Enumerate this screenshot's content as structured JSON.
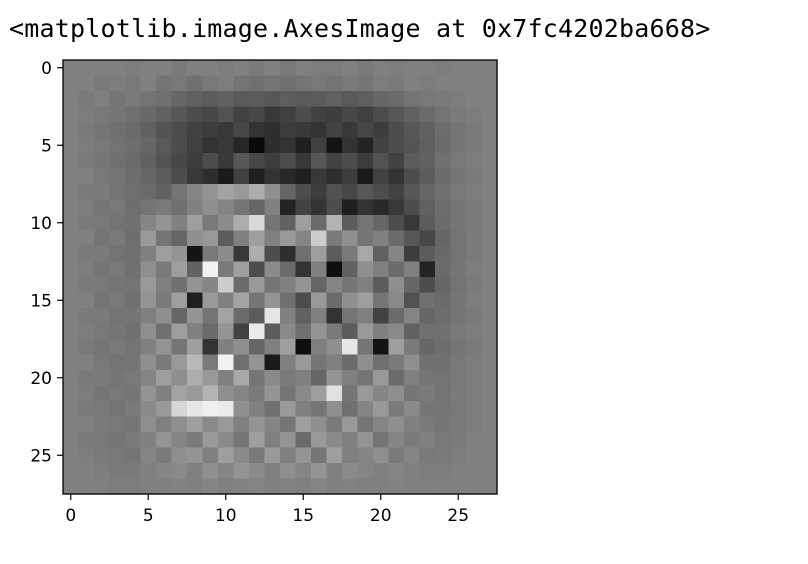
{
  "output": {
    "repr_text": "<matplotlib.image.AxesImage at 0x7fc4202ba668>"
  },
  "chart_data": {
    "type": "heatmap",
    "colormap": "gray",
    "rows": 28,
    "cols": 28,
    "xticks": [
      "0",
      "5",
      "10",
      "15",
      "20",
      "25"
    ],
    "yticks": [
      "0",
      "5",
      "10",
      "15",
      "20",
      "25"
    ],
    "tick_values": [
      0,
      5,
      10,
      15,
      20,
      25
    ],
    "axis_range": [
      -0.5,
      27.5
    ],
    "grid": false,
    "value_range": [
      0,
      1
    ],
    "values": [
      [
        0.5,
        0.5,
        0.5,
        0.5,
        0.49,
        0.5,
        0.5,
        0.48,
        0.5,
        0.5,
        0.49,
        0.5,
        0.48,
        0.5,
        0.47,
        0.5,
        0.49,
        0.49,
        0.5,
        0.48,
        0.5,
        0.49,
        0.5,
        0.5,
        0.49,
        0.5,
        0.5,
        0.5
      ],
      [
        0.5,
        0.5,
        0.48,
        0.49,
        0.47,
        0.5,
        0.46,
        0.47,
        0.44,
        0.47,
        0.49,
        0.46,
        0.44,
        0.46,
        0.44,
        0.46,
        0.47,
        0.45,
        0.48,
        0.46,
        0.49,
        0.48,
        0.5,
        0.49,
        0.5,
        0.5,
        0.5,
        0.5
      ],
      [
        0.5,
        0.48,
        0.5,
        0.46,
        0.48,
        0.45,
        0.44,
        0.4,
        0.38,
        0.36,
        0.38,
        0.35,
        0.36,
        0.34,
        0.37,
        0.35,
        0.36,
        0.38,
        0.35,
        0.37,
        0.4,
        0.42,
        0.45,
        0.47,
        0.48,
        0.49,
        0.5,
        0.5
      ],
      [
        0.5,
        0.49,
        0.47,
        0.46,
        0.44,
        0.41,
        0.38,
        0.34,
        0.3,
        0.28,
        0.32,
        0.26,
        0.28,
        0.22,
        0.25,
        0.3,
        0.26,
        0.24,
        0.28,
        0.25,
        0.3,
        0.34,
        0.38,
        0.42,
        0.45,
        0.48,
        0.49,
        0.5
      ],
      [
        0.5,
        0.48,
        0.46,
        0.44,
        0.42,
        0.38,
        0.33,
        0.3,
        0.26,
        0.24,
        0.22,
        0.28,
        0.2,
        0.18,
        0.24,
        0.22,
        0.2,
        0.26,
        0.22,
        0.28,
        0.24,
        0.3,
        0.34,
        0.38,
        0.43,
        0.46,
        0.48,
        0.5
      ],
      [
        0.5,
        0.49,
        0.47,
        0.45,
        0.43,
        0.4,
        0.35,
        0.3,
        0.25,
        0.2,
        0.22,
        0.15,
        0.04,
        0.18,
        0.2,
        0.12,
        0.25,
        0.08,
        0.2,
        0.14,
        0.26,
        0.3,
        0.33,
        0.37,
        0.42,
        0.46,
        0.48,
        0.5
      ],
      [
        0.5,
        0.48,
        0.46,
        0.44,
        0.42,
        0.38,
        0.33,
        0.28,
        0.24,
        0.3,
        0.22,
        0.34,
        0.28,
        0.24,
        0.3,
        0.22,
        0.34,
        0.26,
        0.3,
        0.24,
        0.32,
        0.26,
        0.36,
        0.38,
        0.44,
        0.47,
        0.49,
        0.5
      ],
      [
        0.5,
        0.5,
        0.47,
        0.46,
        0.43,
        0.4,
        0.36,
        0.3,
        0.22,
        0.18,
        0.1,
        0.25,
        0.12,
        0.2,
        0.16,
        0.12,
        0.22,
        0.18,
        0.24,
        0.1,
        0.26,
        0.2,
        0.3,
        0.36,
        0.42,
        0.46,
        0.48,
        0.5
      ],
      [
        0.5,
        0.48,
        0.48,
        0.45,
        0.44,
        0.42,
        0.38,
        0.46,
        0.52,
        0.58,
        0.64,
        0.6,
        0.68,
        0.56,
        0.4,
        0.3,
        0.24,
        0.32,
        0.28,
        0.34,
        0.3,
        0.26,
        0.34,
        0.4,
        0.44,
        0.47,
        0.49,
        0.5
      ],
      [
        0.5,
        0.49,
        0.46,
        0.47,
        0.43,
        0.46,
        0.48,
        0.44,
        0.5,
        0.56,
        0.52,
        0.46,
        0.4,
        0.5,
        0.14,
        0.26,
        0.2,
        0.3,
        0.12,
        0.2,
        0.16,
        0.22,
        0.3,
        0.38,
        0.43,
        0.46,
        0.48,
        0.5
      ],
      [
        0.5,
        0.48,
        0.47,
        0.45,
        0.44,
        0.52,
        0.58,
        0.5,
        0.62,
        0.48,
        0.55,
        0.68,
        0.85,
        0.46,
        0.38,
        0.62,
        0.42,
        0.7,
        0.36,
        0.46,
        0.4,
        0.3,
        0.22,
        0.36,
        0.42,
        0.46,
        0.48,
        0.5
      ],
      [
        0.5,
        0.5,
        0.46,
        0.47,
        0.43,
        0.6,
        0.46,
        0.4,
        0.56,
        0.6,
        0.36,
        0.5,
        0.62,
        0.5,
        0.6,
        0.52,
        0.8,
        0.48,
        0.56,
        0.46,
        0.5,
        0.42,
        0.34,
        0.28,
        0.4,
        0.45,
        0.48,
        0.5
      ],
      [
        0.5,
        0.48,
        0.48,
        0.45,
        0.44,
        0.5,
        0.62,
        0.58,
        0.08,
        0.48,
        0.55,
        0.22,
        0.68,
        0.3,
        0.18,
        0.44,
        0.62,
        0.36,
        0.48,
        0.66,
        0.38,
        0.52,
        0.24,
        0.36,
        0.41,
        0.45,
        0.48,
        0.5
      ],
      [
        0.5,
        0.49,
        0.46,
        0.47,
        0.44,
        0.56,
        0.48,
        0.62,
        0.38,
        0.95,
        0.48,
        0.62,
        0.3,
        0.55,
        0.42,
        0.2,
        0.5,
        0.06,
        0.38,
        0.56,
        0.5,
        0.42,
        0.5,
        0.14,
        0.42,
        0.46,
        0.49,
        0.5
      ],
      [
        0.5,
        0.48,
        0.47,
        0.46,
        0.45,
        0.6,
        0.5,
        0.44,
        0.58,
        0.52,
        0.8,
        0.42,
        0.6,
        0.46,
        0.5,
        0.58,
        0.4,
        0.52,
        0.46,
        0.5,
        0.36,
        0.56,
        0.4,
        0.3,
        0.4,
        0.45,
        0.48,
        0.5
      ],
      [
        0.5,
        0.5,
        0.46,
        0.47,
        0.44,
        0.58,
        0.48,
        0.62,
        0.12,
        0.6,
        0.5,
        0.64,
        0.46,
        0.58,
        0.44,
        0.3,
        0.6,
        0.42,
        0.56,
        0.62,
        0.46,
        0.54,
        0.32,
        0.44,
        0.42,
        0.46,
        0.49,
        0.5
      ],
      [
        0.5,
        0.48,
        0.48,
        0.45,
        0.46,
        0.5,
        0.56,
        0.4,
        0.58,
        0.46,
        0.64,
        0.42,
        0.36,
        0.9,
        0.5,
        0.38,
        0.5,
        0.2,
        0.46,
        0.5,
        0.26,
        0.42,
        0.52,
        0.4,
        0.43,
        0.46,
        0.48,
        0.5
      ],
      [
        0.5,
        0.49,
        0.47,
        0.46,
        0.44,
        0.56,
        0.44,
        0.62,
        0.5,
        0.42,
        0.58,
        0.26,
        0.92,
        0.36,
        0.54,
        0.44,
        0.58,
        0.48,
        0.36,
        0.6,
        0.5,
        0.54,
        0.38,
        0.44,
        0.44,
        0.47,
        0.49,
        0.5
      ],
      [
        0.5,
        0.48,
        0.46,
        0.47,
        0.45,
        0.5,
        0.58,
        0.46,
        0.62,
        0.2,
        0.5,
        0.56,
        0.4,
        0.5,
        0.62,
        0.06,
        0.5,
        0.56,
        0.9,
        0.46,
        0.08,
        0.62,
        0.48,
        0.4,
        0.43,
        0.46,
        0.48,
        0.5
      ],
      [
        0.5,
        0.5,
        0.47,
        0.45,
        0.46,
        0.56,
        0.48,
        0.6,
        0.72,
        0.48,
        0.95,
        0.44,
        0.58,
        0.1,
        0.5,
        0.6,
        0.46,
        0.5,
        0.42,
        0.56,
        0.44,
        0.48,
        0.56,
        0.44,
        0.44,
        0.47,
        0.49,
        0.5
      ],
      [
        0.5,
        0.48,
        0.48,
        0.46,
        0.47,
        0.52,
        0.62,
        0.56,
        0.68,
        0.6,
        0.5,
        0.66,
        0.46,
        0.54,
        0.48,
        0.5,
        0.4,
        0.58,
        0.5,
        0.46,
        0.6,
        0.42,
        0.5,
        0.46,
        0.45,
        0.47,
        0.49,
        0.5
      ],
      [
        0.5,
        0.49,
        0.46,
        0.47,
        0.46,
        0.58,
        0.5,
        0.64,
        0.6,
        0.7,
        0.56,
        0.52,
        0.48,
        0.58,
        0.46,
        0.54,
        0.62,
        0.88,
        0.46,
        0.6,
        0.52,
        0.56,
        0.46,
        0.48,
        0.45,
        0.48,
        0.49,
        0.5
      ],
      [
        0.5,
        0.48,
        0.47,
        0.45,
        0.48,
        0.54,
        0.6,
        0.84,
        0.9,
        0.94,
        0.92,
        0.56,
        0.5,
        0.44,
        0.6,
        0.5,
        0.46,
        0.56,
        0.44,
        0.52,
        0.6,
        0.48,
        0.54,
        0.46,
        0.46,
        0.47,
        0.49,
        0.5
      ],
      [
        0.5,
        0.5,
        0.48,
        0.47,
        0.46,
        0.56,
        0.5,
        0.56,
        0.62,
        0.54,
        0.6,
        0.5,
        0.58,
        0.52,
        0.46,
        0.62,
        0.56,
        0.48,
        0.6,
        0.46,
        0.52,
        0.56,
        0.5,
        0.48,
        0.46,
        0.48,
        0.49,
        0.5
      ],
      [
        0.5,
        0.48,
        0.47,
        0.46,
        0.48,
        0.5,
        0.58,
        0.52,
        0.48,
        0.6,
        0.54,
        0.46,
        0.62,
        0.5,
        0.58,
        0.42,
        0.6,
        0.54,
        0.5,
        0.58,
        0.46,
        0.52,
        0.48,
        0.5,
        0.47,
        0.48,
        0.5,
        0.5
      ],
      [
        0.5,
        0.49,
        0.48,
        0.47,
        0.46,
        0.52,
        0.48,
        0.56,
        0.58,
        0.5,
        0.62,
        0.54,
        0.48,
        0.6,
        0.5,
        0.58,
        0.46,
        0.62,
        0.5,
        0.52,
        0.56,
        0.48,
        0.52,
        0.47,
        0.48,
        0.49,
        0.5,
        0.5
      ],
      [
        0.5,
        0.5,
        0.49,
        0.48,
        0.48,
        0.5,
        0.52,
        0.54,
        0.5,
        0.56,
        0.52,
        0.58,
        0.54,
        0.5,
        0.56,
        0.52,
        0.58,
        0.5,
        0.54,
        0.52,
        0.5,
        0.52,
        0.5,
        0.49,
        0.49,
        0.5,
        0.5,
        0.5
      ],
      [
        0.5,
        0.5,
        0.5,
        0.49,
        0.49,
        0.5,
        0.5,
        0.51,
        0.5,
        0.52,
        0.5,
        0.51,
        0.52,
        0.5,
        0.51,
        0.5,
        0.52,
        0.5,
        0.51,
        0.5,
        0.5,
        0.51,
        0.5,
        0.5,
        0.5,
        0.5,
        0.5,
        0.5
      ]
    ]
  }
}
